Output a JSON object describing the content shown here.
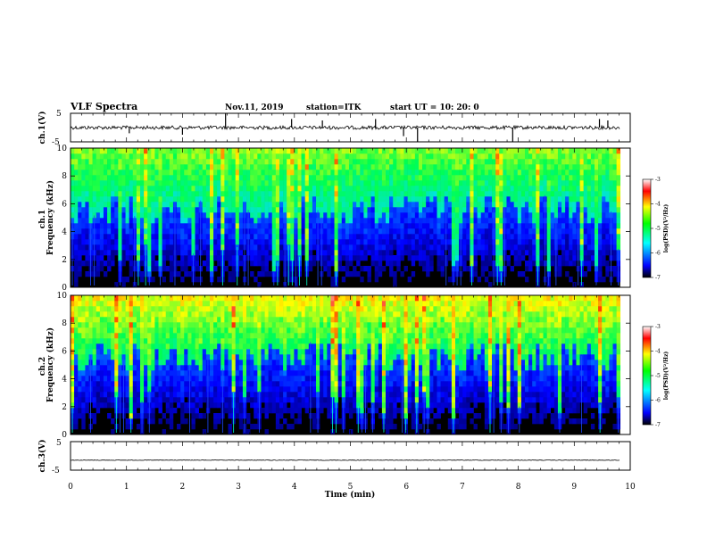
{
  "header": {
    "title": "VLF Spectra",
    "date": "Nov.11, 2019",
    "station": "station=ITK",
    "start": "start  UT =   10: 20: 0"
  },
  "chart_data": [
    {
      "type": "line",
      "id": "ch1-waveform",
      "ylabel": "ch.1(V)",
      "ylim": [
        -5,
        5
      ],
      "y_ticks": [
        "5",
        "-5"
      ],
      "xlim": [
        0,
        10
      ],
      "baseline": 0,
      "spikes": [
        {
          "x": 2.77,
          "y": 5
        },
        {
          "x": 3.95,
          "y": 3
        },
        {
          "x": 4.5,
          "y": 2.5
        },
        {
          "x": 5.45,
          "y": 3
        },
        {
          "x": 5.95,
          "y": -3
        },
        {
          "x": 6.2,
          "y": -5
        },
        {
          "x": 7.9,
          "y": -5
        },
        {
          "x": 1.05,
          "y": -2
        },
        {
          "x": 2.0,
          "y": -2.5
        },
        {
          "x": 9.45,
          "y": 3
        },
        {
          "x": 9.6,
          "y": 2.5
        }
      ]
    },
    {
      "type": "heatmap",
      "id": "ch1-spectrogram",
      "ylabel": "ch.1 Frequency (kHz)",
      "ylim": [
        0,
        10
      ],
      "y_ticks": [
        "0",
        "2",
        "4",
        "6",
        "8",
        "10"
      ],
      "xlim": [
        0,
        9.82
      ],
      "colorbar": {
        "label": "log(PSD)(V²/Hz)",
        "range": [
          -7,
          -3
        ],
        "ticks": [
          "-3",
          "-4",
          "-5",
          "-6",
          "-7"
        ]
      }
    },
    {
      "type": "heatmap",
      "id": "ch2-spectrogram",
      "ylabel": "ch.2 Frequency (kHz)",
      "ylim": [
        0,
        10
      ],
      "y_ticks": [
        "0",
        "2",
        "4",
        "6",
        "8",
        "10"
      ],
      "xlim": [
        0,
        9.82
      ],
      "colorbar": {
        "label": "log(PSD)(V²/Hz)",
        "range": [
          -7,
          -3
        ],
        "ticks": [
          "-3",
          "-4",
          "-5",
          "-6",
          "-7"
        ]
      }
    },
    {
      "type": "line",
      "id": "ch3-waveform",
      "ylabel": "ch.3(V)",
      "ylim": [
        -5,
        5
      ],
      "y_ticks": [
        "5",
        "-5"
      ],
      "xlim": [
        0,
        10
      ],
      "baseline": -1.5,
      "xlabel": "Time (min)",
      "x_ticks": [
        "0",
        "1",
        "2",
        "3",
        "4",
        "5",
        "6",
        "7",
        "8",
        "9",
        "10"
      ]
    }
  ],
  "colors": {
    "low": "#000000",
    "colormap": [
      "#000000",
      "#0000ff",
      "#00ffff",
      "#00ff00",
      "#ffff00",
      "#ff0000",
      "#ffffff"
    ]
  }
}
